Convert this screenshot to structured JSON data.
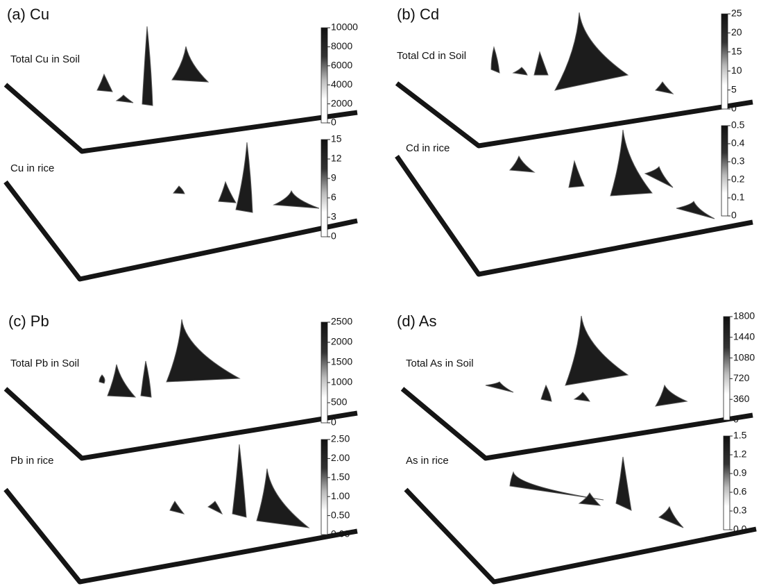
{
  "panels": [
    {
      "title": "(a) Cu",
      "plots": [
        {
          "label": "Total Cu in Soil",
          "colorbar_ticks": [
            "10000",
            "8000",
            "6000",
            "4000",
            "2000",
            "0"
          ]
        },
        {
          "label": "Cu in rice",
          "colorbar_ticks": [
            "15",
            "12",
            "9",
            "6",
            "3",
            "0"
          ]
        }
      ]
    },
    {
      "title": "(b) Cd",
      "plots": [
        {
          "label": "Total Cd in Soil",
          "colorbar_ticks": [
            "25",
            "20",
            "15",
            "10",
            "5",
            "0"
          ]
        },
        {
          "label": "Cd in rice",
          "colorbar_ticks": [
            "0.5",
            "0.4",
            "0.3",
            "0.2",
            "0.1",
            "0"
          ]
        }
      ]
    },
    {
      "title": "(c) Pb",
      "plots": [
        {
          "label": "Total Pb in Soil",
          "colorbar_ticks": [
            "2500",
            "2000",
            "1500",
            "1000",
            "500",
            "0"
          ]
        },
        {
          "label": "Pb in rice",
          "colorbar_ticks": [
            "2.50",
            "2.00",
            "1.50",
            "1.00",
            "0.50",
            "0.00"
          ]
        }
      ]
    },
    {
      "title": "(d) As",
      "plots": [
        {
          "label": "Total As in Soil",
          "colorbar_ticks": [
            "1800",
            "1440",
            "1080",
            "720",
            "360",
            "0"
          ]
        },
        {
          "label": "As in rice",
          "colorbar_ticks": [
            "1.5",
            "1.2",
            "0.9",
            "0.6",
            "0.3",
            "0.0"
          ]
        }
      ]
    }
  ]
}
